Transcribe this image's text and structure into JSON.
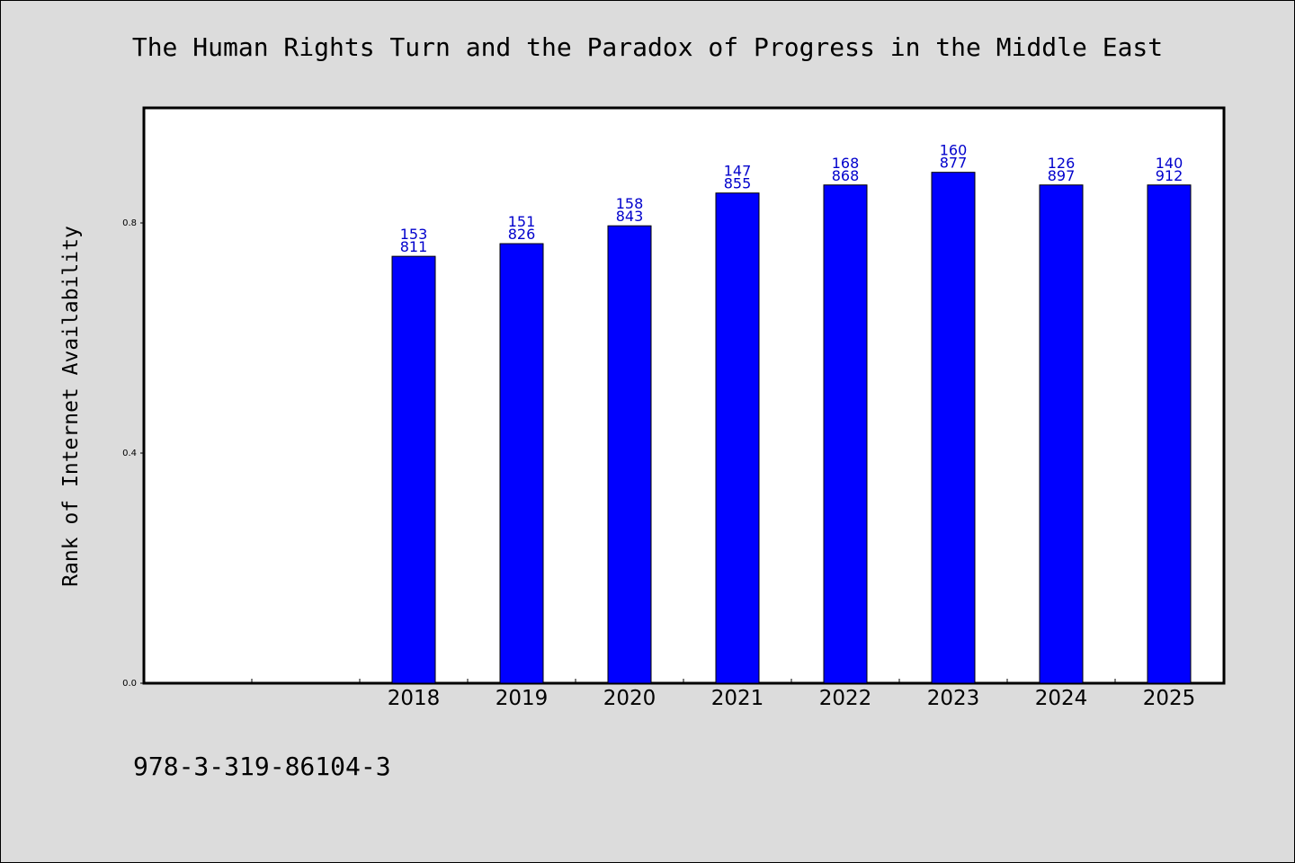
{
  "chart_data": {
    "type": "bar",
    "title": "The Human Rights Turn and the Paradox of Progress in the Middle East",
    "xlabel": "",
    "ylabel": "Rank of Internet Availability",
    "categories": [
      "",
      "",
      "2018",
      "2019",
      "2020",
      "2021",
      "2022",
      "2023",
      "2024",
      "2025"
    ],
    "values": [
      null,
      null,
      0.742,
      0.764,
      0.795,
      0.852,
      0.866,
      0.888,
      0.866,
      0.866
    ],
    "labels_top": [
      "",
      "",
      "153",
      "151",
      "158",
      "147",
      "168",
      "160",
      "126",
      "140"
    ],
    "labels_bottom": [
      "",
      "",
      "811",
      "826",
      "843",
      "855",
      "868",
      "877",
      "897",
      "912"
    ],
    "yticks": [
      0.0,
      0.4,
      0.8
    ],
    "ytick_labels": [
      "0.0",
      "0.4",
      "0.8"
    ],
    "ylim": [
      0,
      1.0
    ],
    "bar_color": "#0000ff",
    "label_color": "#0000cc",
    "grid": false
  },
  "footer": {
    "isbn": "978-3-319-86104-3"
  }
}
